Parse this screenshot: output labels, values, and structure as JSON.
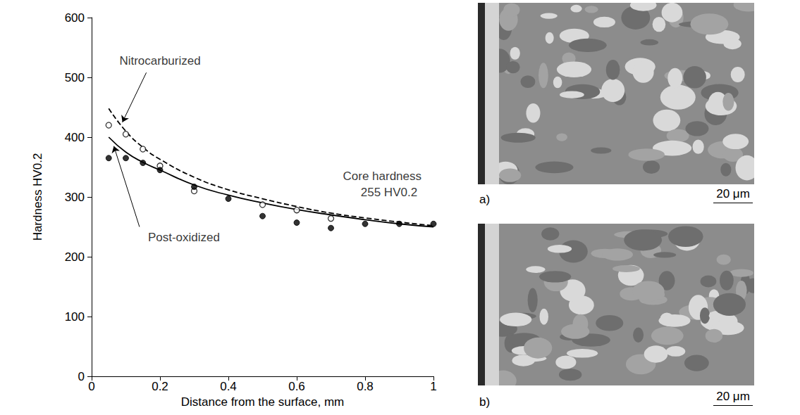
{
  "chart_data": {
    "type": "scatter",
    "x_label": "Distance from the surface, mm",
    "y_label": "Hardness HV0.2",
    "xlim": [
      0,
      1
    ],
    "xticks": [
      0,
      0.2,
      0.4,
      0.6,
      0.8,
      1
    ],
    "ylim": [
      0,
      600
    ],
    "yticks": [
      0,
      100,
      200,
      300,
      400,
      500,
      600
    ],
    "grid": false,
    "series": [
      {
        "name": "Nitrocarburized",
        "color": "#000000",
        "marker": "open",
        "line_style": "dashed",
        "x": [
          0.05,
          0.1,
          0.15,
          0.2,
          0.3,
          0.5,
          0.6,
          0.7
        ],
        "values": [
          420,
          405,
          380,
          352,
          310,
          287,
          278,
          264
        ],
        "fit_x": [
          0.05,
          0.1,
          0.15,
          0.2,
          0.3,
          0.4,
          0.5,
          0.6,
          0.7,
          0.8,
          0.9,
          1
        ],
        "fit_values": [
          448,
          410,
          383,
          363,
          333,
          312,
          297,
          284,
          273,
          265,
          258,
          252
        ]
      },
      {
        "name": "Post-oxidized",
        "color": "#000000",
        "marker": "filled",
        "line_style": "solid",
        "x": [
          0.05,
          0.1,
          0.15,
          0.2,
          0.3,
          0.4,
          0.5,
          0.6,
          0.7,
          0.8,
          0.9,
          1
        ],
        "values": [
          365,
          365,
          357,
          345,
          317,
          297,
          268,
          257,
          248,
          255,
          255,
          255
        ],
        "fit_x": [
          0.05,
          0.1,
          0.15,
          0.2,
          0.3,
          0.4,
          0.5,
          0.6,
          0.7,
          0.8,
          0.9,
          1
        ],
        "fit_values": [
          400,
          375,
          358,
          345,
          320,
          303,
          290,
          279,
          270,
          262,
          255,
          250
        ]
      }
    ],
    "annotations": [
      {
        "text": "Nitrocarburized",
        "x": 0.2,
        "y": 528,
        "arrow_from": [
          0.16,
          508
        ],
        "arrow_to": [
          0.09,
          425
        ]
      },
      {
        "text": "Post-oxidized",
        "x": 0.27,
        "y": 232,
        "arrow_from": [
          0.14,
          250
        ],
        "arrow_to": [
          0.065,
          385
        ]
      },
      {
        "text": "Core hardness",
        "x": 0.85,
        "y": 335
      },
      {
        "text": "255 HV0.2",
        "x": 0.87,
        "y": 308
      }
    ]
  },
  "panels": [
    {
      "label": "a)",
      "scale_bar": "20 μm"
    },
    {
      "label": "b)",
      "scale_bar": "20 μm"
    }
  ]
}
